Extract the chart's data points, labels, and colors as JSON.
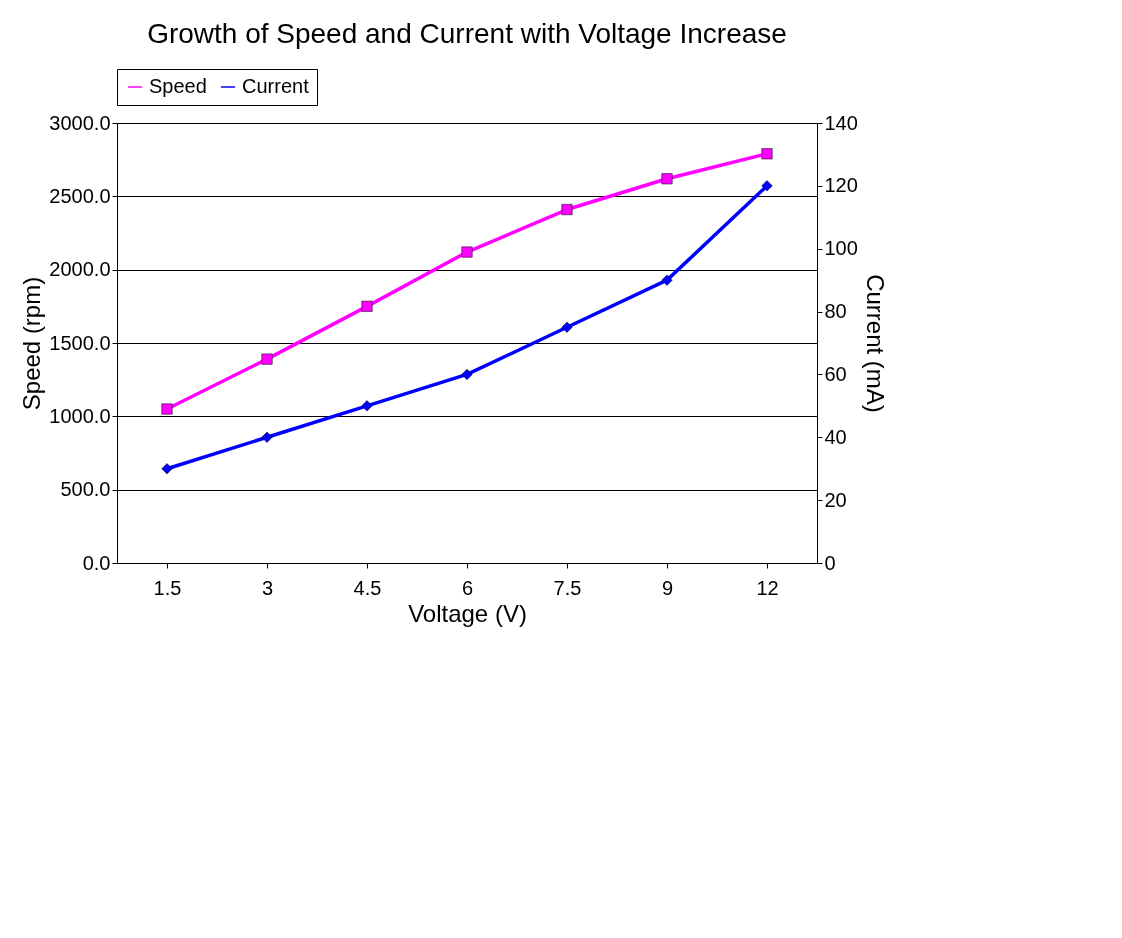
{
  "chart_data": {
    "type": "line",
    "title": "Growth of Speed and Current with Voltage Increase",
    "xlabel": "Voltage (V)",
    "ylabel": "Speed (rpm)",
    "y2label": "Current (mA)",
    "categories": [
      "1.5",
      "3",
      "4.5",
      "6",
      "7.5",
      "9",
      "12"
    ],
    "series": [
      {
        "name": "Speed",
        "color": "#ff00ff",
        "marker": "square",
        "values": [
          1050,
          1390,
          1750,
          2120,
          2410,
          2620,
          2790
        ]
      },
      {
        "name": "Current",
        "color": "#0000ff",
        "marker": "diamond",
        "axis": "y2",
        "values": [
          30,
          40,
          50,
          60,
          75,
          90,
          120
        ]
      }
    ],
    "ylim": [
      0,
      3000
    ],
    "yticks": [
      {
        "value": 0,
        "label": "0.0"
      },
      {
        "value": 500,
        "label": "500.0"
      },
      {
        "value": 1000,
        "label": "1000.0"
      },
      {
        "value": 1500,
        "label": "1500.0"
      },
      {
        "value": 2000,
        "label": "2000.0"
      },
      {
        "value": 2500,
        "label": "2500.0"
      },
      {
        "value": 3000,
        "label": "3000.0"
      }
    ],
    "y2lim": [
      0,
      140
    ],
    "y2ticks": [
      0,
      20,
      40,
      60,
      80,
      100,
      120,
      140
    ],
    "grid": "y",
    "legend": "top",
    "line_style": "solid"
  }
}
